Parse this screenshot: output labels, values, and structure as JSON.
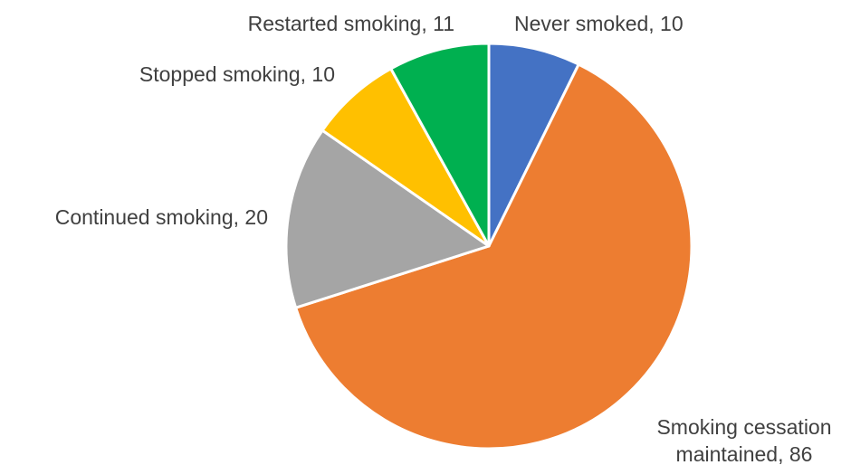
{
  "chart_data": {
    "type": "pie",
    "slices": [
      {
        "label": "Never smoked",
        "value": 10,
        "color": "#4472C4",
        "label_lines": [
          "Never smoked, 10"
        ]
      },
      {
        "label": "Smoking cessation maintained",
        "value": 86,
        "color": "#ED7D31",
        "label_lines": [
          "Smoking cessation",
          "maintained, 86"
        ]
      },
      {
        "label": "Continued smoking",
        "value": 20,
        "color": "#A5A5A5",
        "label_lines": [
          "Continued smoking, 20"
        ]
      },
      {
        "label": "Stopped smoking",
        "value": 10,
        "color": "#FFC000",
        "label_lines": [
          "Stopped smoking, 10"
        ]
      },
      {
        "label": "Restarted smoking",
        "value": 11,
        "color": "#00B050",
        "label_lines": [
          "Restarted smoking, 11"
        ]
      }
    ],
    "start": "12 o'clock",
    "direction": "clockwise",
    "legend": "none",
    "slice_border_color": "#ffffff"
  }
}
